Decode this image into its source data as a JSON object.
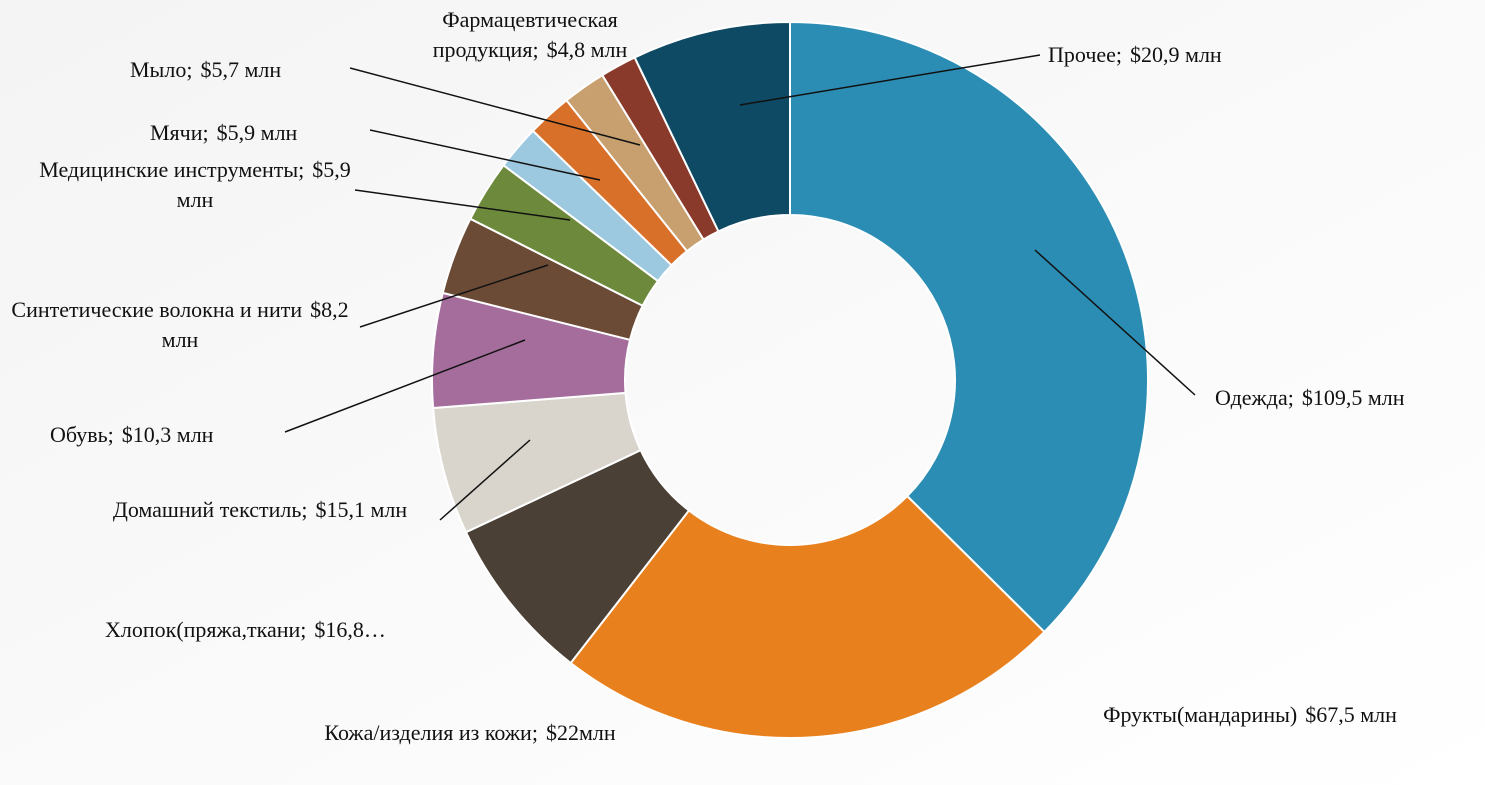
{
  "chart_data": {
    "type": "donut",
    "categories": [
      "Одежда;",
      "Фрукты(мандарины)",
      "Кожа/изделия из кожи;",
      "Хлопок(пряжа,ткани;",
      "Домашний текстиль;",
      "Обувь;",
      "Синтетические волокна и нити",
      "Медицинские инструменты;",
      "Мячи;",
      "Мыло;",
      "Фармацевтическая продукция;",
      "Прочее;"
    ],
    "values": [
      109.5,
      67.5,
      22,
      16.8,
      15.1,
      10.3,
      8.2,
      5.9,
      5.9,
      5.7,
      4.8,
      20.9
    ],
    "value_labels": [
      "$109,5 млн",
      "$67,5 млн",
      "$22млн",
      "$16,8…",
      "$15,1 млн",
      "$10,3 млн",
      "$8,2 млн",
      "$5,9 млн",
      "$5,9 млн",
      "$5,7 млн",
      "$4,8 млн",
      "$20,9 млн"
    ],
    "colors": [
      "#2b8db3",
      "#e8801e",
      "#4a4036",
      "#d9d5cc",
      "#a46d9c",
      "#6b4a36",
      "#6d8a3c",
      "#9cc8e0",
      "#d9702a",
      "#c8a070",
      "#8a3a2a",
      "#0e4a63"
    ]
  }
}
